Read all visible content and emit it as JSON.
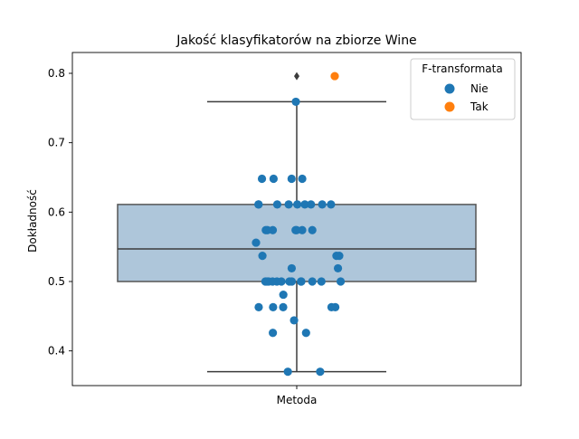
{
  "chart_data": {
    "type": "box",
    "title": "Jakość klasyfikatorów na zbiorze Wine",
    "xlabel": "",
    "ylabel": "Dokładność",
    "categories": [
      "Metoda"
    ],
    "ylim": [
      0.35,
      0.83
    ],
    "yticks": [
      0.4,
      0.5,
      0.6,
      0.7,
      0.8
    ],
    "ytick_labels": [
      "0.4",
      "0.5",
      "0.6",
      "0.7",
      "0.8"
    ],
    "box": {
      "whisker_low": 0.37,
      "q1": 0.5,
      "median": 0.547,
      "q3": 0.611,
      "whisker_high": 0.759,
      "outliers": [
        0.796
      ],
      "color": "#aec6da",
      "edge_color": "#555555"
    },
    "legend": {
      "title": "F-transformata",
      "placement": "top-right",
      "entries": [
        {
          "label": "Nie",
          "color": "#1f77b4"
        },
        {
          "label": "Tak",
          "color": "#ff7f0e"
        }
      ]
    },
    "series": [
      {
        "name": "Nie",
        "color": "#1f77b4",
        "values": [
          0.759,
          0.648,
          0.648,
          0.648,
          0.648,
          0.611,
          0.611,
          0.611,
          0.611,
          0.611,
          0.611,
          0.611,
          0.611,
          0.611,
          0.574,
          0.574,
          0.574,
          0.574,
          0.574,
          0.574,
          0.574,
          0.556,
          0.537,
          0.537,
          0.537,
          0.519,
          0.519,
          0.5,
          0.5,
          0.5,
          0.5,
          0.5,
          0.5,
          0.5,
          0.5,
          0.5,
          0.5,
          0.5,
          0.5,
          0.5,
          0.481,
          0.463,
          0.463,
          0.463,
          0.463,
          0.463,
          0.444,
          0.426,
          0.426,
          0.37,
          0.37
        ]
      },
      {
        "name": "Tak",
        "color": "#ff7f0e",
        "values": [
          0.796
        ]
      }
    ]
  }
}
